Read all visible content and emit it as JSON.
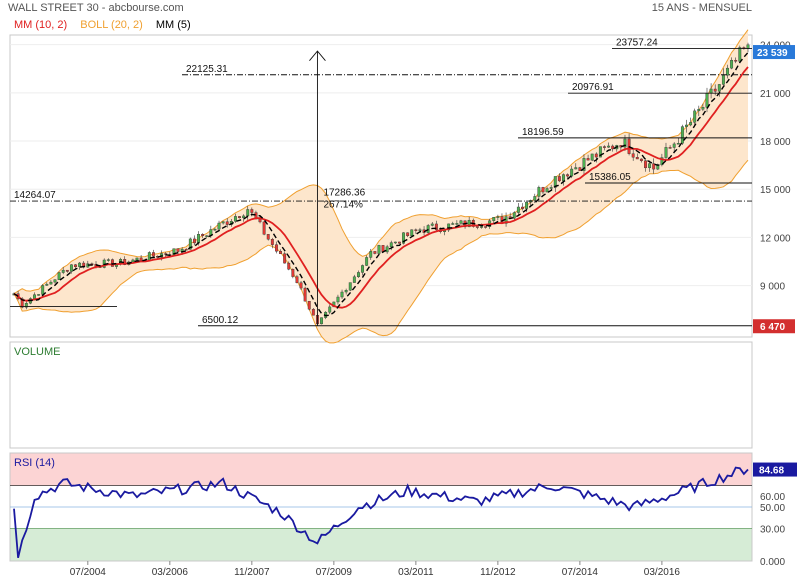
{
  "header": {
    "title": "WALL STREET 30 - abcbourse.com",
    "period": "15 ANS - MENSUEL"
  },
  "legend": [
    {
      "label": "MM (10, 2)",
      "color": "#e02020"
    },
    {
      "label": "BOLL (20, 2)",
      "color": "#f0a030"
    },
    {
      "label": "MM (5)",
      "color": "#000000"
    }
  ],
  "price_panel": {
    "current_price_label": "23 539",
    "low_marker_label": "6 470",
    "annotations": [
      {
        "text": "23757.24",
        "value": 23757.24
      },
      {
        "text": "22125.31",
        "value": 22125.31
      },
      {
        "text": "20976.91",
        "value": 20976.91
      },
      {
        "text": "18196.59",
        "value": 18196.59
      },
      {
        "text": "15386.05",
        "value": 15386.05
      },
      {
        "text": "14264.07",
        "value": 14264.07
      },
      {
        "text": "6500.12",
        "value": 6500.12
      }
    ],
    "measure": {
      "line1": "17286.36",
      "line2": "267.14%"
    }
  },
  "volume_panel": {
    "label": "VOLUME"
  },
  "rsi_panel": {
    "label": "RSI (14)",
    "current_label": "84.68"
  },
  "colors": {
    "up_candle": "#4caf50",
    "down_candle": "#e53935",
    "mm10": "#e02020",
    "boll": "#f0a030",
    "boll_fill": "#fde6cc",
    "mm5": "#000000",
    "rsi_line": "#1a1aa0",
    "rsi_overbought": "#fcd4d4",
    "rsi_oversold": "#d6ecd6",
    "price_tag": "#2979d9",
    "low_tag": "#d32f2f"
  },
  "chart_data": [
    {
      "type": "candlestick",
      "title": "WALL STREET 30",
      "x_ticks": [
        "07/2004",
        "03/2006",
        "11/2007",
        "07/2009",
        "03/2011",
        "11/2012",
        "07/2014",
        "03/2016"
      ],
      "y_ticks": [
        "24 000",
        "21 000",
        "18 000",
        "15 000",
        "12 000",
        "9 000"
      ],
      "ylim": [
        5800,
        24600
      ],
      "key_points": [
        {
          "x": "2003-01",
          "y": 8500
        },
        {
          "x": "2003-03",
          "y": 7800
        },
        {
          "x": "2004-03",
          "y": 10300
        },
        {
          "x": "2005-03",
          "y": 10400
        },
        {
          "x": "2006-05",
          "y": 11200
        },
        {
          "x": "2007-10",
          "y": 13800
        },
        {
          "x": "2008-10",
          "y": 9300
        },
        {
          "x": "2009-03",
          "y": 6500
        },
        {
          "x": "2010-04",
          "y": 11000
        },
        {
          "x": "2011-04",
          "y": 12500
        },
        {
          "x": "2012-12",
          "y": 13100
        },
        {
          "x": "2014-01",
          "y": 15700
        },
        {
          "x": "2015-05",
          "y": 18000
        },
        {
          "x": "2016-01",
          "y": 16300
        },
        {
          "x": "2016-12",
          "y": 19800
        },
        {
          "x": "2017-11",
          "y": 23600
        }
      ],
      "series": [
        {
          "name": "MM (10, 2)"
        },
        {
          "name": "BOLL (20, 2)"
        },
        {
          "name": "MM (5)"
        }
      ]
    },
    {
      "type": "line",
      "title": "RSI (14)",
      "y_ticks": [
        "84.68",
        "60.00",
        "50.00",
        "30.00",
        "0.000"
      ],
      "ylim": [
        0,
        100
      ],
      "levels": {
        "overbought": 70,
        "mid": 50,
        "oversold": 30
      },
      "key_points": [
        {
          "x": "2003-01",
          "y": 50
        },
        {
          "x": "2003-02",
          "y": 3
        },
        {
          "x": "2003-06",
          "y": 60
        },
        {
          "x": "2004-01",
          "y": 72
        },
        {
          "x": "2005-06",
          "y": 60
        },
        {
          "x": "2007-04",
          "y": 72
        },
        {
          "x": "2008-06",
          "y": 45
        },
        {
          "x": "2009-03",
          "y": 17
        },
        {
          "x": "2010-01",
          "y": 50
        },
        {
          "x": "2011-01",
          "y": 65
        },
        {
          "x": "2012-06",
          "y": 55
        },
        {
          "x": "2013-12",
          "y": 70
        },
        {
          "x": "2015-08",
          "y": 50
        },
        {
          "x": "2016-06",
          "y": 62
        },
        {
          "x": "2017-11",
          "y": 84.68
        }
      ]
    }
  ]
}
